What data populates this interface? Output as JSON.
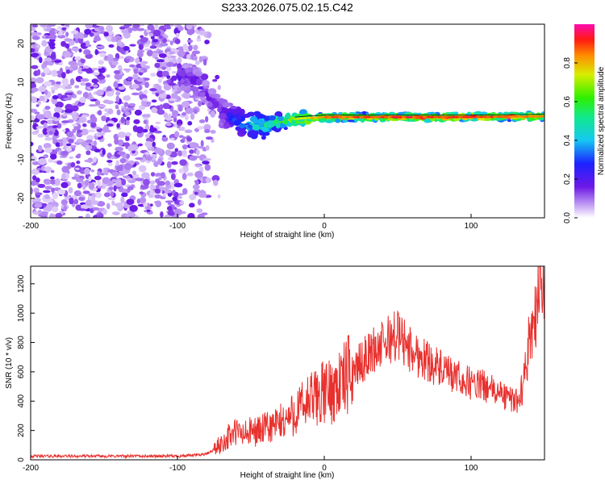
{
  "title": "S233.2026.075.02.15.C42",
  "chart_data": [
    {
      "type": "heatmap",
      "panel": "spectrogram",
      "xlabel": "Height of straight line (km)",
      "ylabel": "Frequency (Hz)",
      "xlim": [
        -200,
        150
      ],
      "ylim": [
        -25,
        25
      ],
      "xticks": [
        -200,
        -100,
        0,
        100
      ],
      "xtick_labels": [
        "-200",
        "-100",
        "0",
        "100"
      ],
      "yticks": [
        -20,
        -10,
        0,
        10,
        20
      ],
      "ytick_labels": [
        "-20",
        "-10",
        "0",
        "10",
        "20"
      ],
      "colorbar": {
        "label": "Normalized spectral amplitude",
        "range": [
          0,
          1
        ],
        "ticks": [
          0,
          0.2,
          0.4,
          0.6,
          0.8
        ],
        "tick_labels": [
          "0.0",
          "0.2",
          "0.4",
          "0.6",
          "0.8"
        ],
        "colormap": "rainbow (white-violet-blue-cyan-green-yellow-red-magenta)"
      },
      "line_track": {
        "x": [
          -100,
          -90,
          -80,
          -70,
          -60,
          -50,
          -40,
          -30,
          -20,
          -10,
          0,
          50,
          100,
          150
        ],
        "y": [
          12,
          11,
          7,
          2,
          0,
          -1,
          -1,
          0,
          0.5,
          0.8,
          1,
          1,
          1,
          1.2
        ],
        "peak_amplitude": [
          0.2,
          0.2,
          0.15,
          0.2,
          0.3,
          0.45,
          0.5,
          0.6,
          0.75,
          0.8,
          0.9,
          0.95,
          0.95,
          0.9
        ]
      },
      "noise_region_x": [
        -200,
        -80
      ]
    },
    {
      "type": "line",
      "panel": "snr",
      "xlabel": "Height of straight line (km)",
      "ylabel": "SNR (10 * v/v)",
      "xlim": [
        -200,
        150
      ],
      "ylim": [
        0,
        1320
      ],
      "xticks": [
        -200,
        -100,
        0,
        100
      ],
      "xtick_labels": [
        "-200",
        "-100",
        "0",
        "100"
      ],
      "yticks": [
        0,
        200,
        400,
        600,
        800,
        1000,
        1200
      ],
      "ytick_labels": [
        "0",
        "200",
        "400",
        "600",
        "800",
        "1000",
        "1200"
      ],
      "color": "#e8312e",
      "series": [
        {
          "name": "SNR",
          "x": [
            -200,
            -180,
            -160,
            -140,
            -120,
            -100,
            -90,
            -80,
            -75,
            -70,
            -65,
            -60,
            -55,
            -50,
            -45,
            -40,
            -35,
            -30,
            -25,
            -20,
            -15,
            -10,
            -5,
            0,
            5,
            10,
            15,
            20,
            25,
            30,
            35,
            40,
            45,
            50,
            55,
            60,
            65,
            70,
            75,
            80,
            85,
            90,
            95,
            100,
            105,
            110,
            115,
            120,
            125,
            130,
            135,
            138,
            141,
            144,
            146,
            148,
            150
          ],
          "y": [
            25,
            25,
            25,
            25,
            25,
            25,
            30,
            40,
            70,
            110,
            160,
            190,
            170,
            190,
            200,
            210,
            230,
            250,
            280,
            320,
            360,
            400,
            430,
            460,
            470,
            520,
            560,
            620,
            660,
            720,
            760,
            780,
            830,
            850,
            800,
            730,
            710,
            680,
            650,
            610,
            580,
            560,
            540,
            520,
            510,
            500,
            470,
            450,
            420,
            400,
            480,
            700,
            900,
            1000,
            1150,
            1280,
            1100
          ]
        }
      ]
    }
  ]
}
